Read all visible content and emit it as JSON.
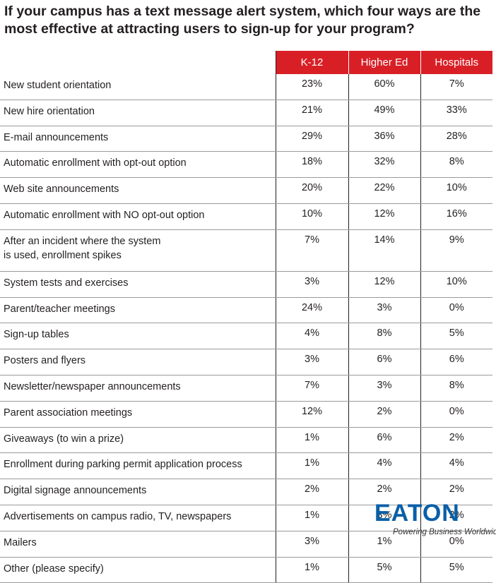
{
  "title_line1": "If your campus has a text message alert system, which four ways are the",
  "title_line2": "most effective at attracting users to sign-up for your program?",
  "chart_data": {
    "type": "table",
    "columns": [
      "K-12",
      "Higher Ed",
      "Hospitals"
    ],
    "header_color": "#d91f26",
    "rows": [
      {
        "label": "New student orientation",
        "values": [
          "23%",
          "60%",
          "7%"
        ]
      },
      {
        "label": "New hire orientation",
        "values": [
          "21%",
          "49%",
          "33%"
        ]
      },
      {
        "label": "E-mail announcements",
        "values": [
          "29%",
          "36%",
          "28%"
        ]
      },
      {
        "label": "Automatic enrollment with opt-out option",
        "values": [
          "18%",
          "32%",
          "8%"
        ]
      },
      {
        "label": "Web site announcements",
        "values": [
          "20%",
          "22%",
          "10%"
        ]
      },
      {
        "label": "Automatic enrollment with NO opt-out option",
        "values": [
          "10%",
          "12%",
          "16%"
        ]
      },
      {
        "label": "After an incident where the system is used, enrollment spikes",
        "values": [
          "7%",
          "14%",
          "9%"
        ]
      },
      {
        "label": "System tests and exercises",
        "values": [
          "3%",
          "12%",
          "10%"
        ]
      },
      {
        "label": "Parent/teacher meetings",
        "values": [
          "24%",
          "3%",
          "0%"
        ]
      },
      {
        "label": "Sign-up tables",
        "values": [
          "4%",
          "8%",
          "5%"
        ]
      },
      {
        "label": "Posters and flyers",
        "values": [
          "3%",
          "6%",
          "6%"
        ]
      },
      {
        "label": "Newsletter/newspaper announcements",
        "values": [
          "7%",
          "3%",
          "8%"
        ]
      },
      {
        "label": "Parent association meetings",
        "values": [
          "12%",
          "2%",
          "0%"
        ]
      },
      {
        "label": "Giveaways (to win a prize)",
        "values": [
          "1%",
          "6%",
          "2%"
        ]
      },
      {
        "label": "Enrollment during parking permit application process",
        "values": [
          "1%",
          "4%",
          "4%"
        ]
      },
      {
        "label": "Digital signage announcements",
        "values": [
          "2%",
          "2%",
          "2%"
        ]
      },
      {
        "label": "Advertisements on campus radio, TV, newspapers",
        "values": [
          "1%",
          "3%",
          "2%"
        ]
      },
      {
        "label": "Mailers",
        "values": [
          "3%",
          "1%",
          "0%"
        ]
      },
      {
        "label": "Other (please specify)",
        "values": [
          "1%",
          "5%",
          "5%"
        ]
      }
    ]
  },
  "logo": {
    "brand": "EATON",
    "tagline": "Powering Business Worldwide",
    "color": "#0a5fa8"
  }
}
